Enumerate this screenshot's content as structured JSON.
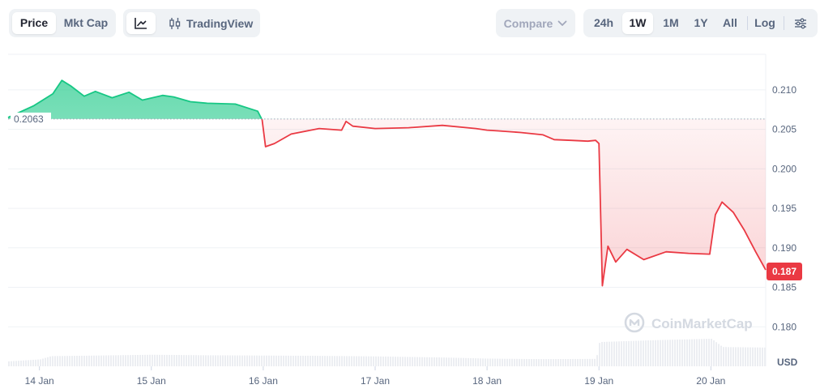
{
  "toolbar": {
    "price_label": "Price",
    "mktcap_label": "Mkt Cap",
    "tradingview_label": "TradingView",
    "compare_label": "Compare",
    "ranges": [
      "24h",
      "1W",
      "1M",
      "1Y",
      "All"
    ],
    "active_range": "1W",
    "log_label": "Log",
    "icons": {
      "line_chart": "line-chart-icon",
      "candles": "candlestick-icon",
      "compare_dropdown": "chevron-down-icon",
      "settings": "sliders-icon"
    }
  },
  "watermark": {
    "text": "CoinMarketCap",
    "icon": "coinmarketcap-logo-icon"
  },
  "colors": {
    "up": "#16c784",
    "down": "#ea3943",
    "baseline": "#a1a7bb",
    "grid": "#eff2f5",
    "axis_text": "#58667e",
    "volume": "#eceef2"
  },
  "chart_data": {
    "type": "area",
    "currency": "USD",
    "baseline": 0.2063,
    "baseline_label": "0.2063",
    "current_price": 0.187,
    "current_price_label": "0.187",
    "ylim": [
      0.175,
      0.2145
    ],
    "y_ticks": [
      0.21,
      0.205,
      0.2,
      0.195,
      0.19,
      0.185,
      0.18
    ],
    "y_tick_labels": [
      "0.210",
      "0.205",
      "0.200",
      "0.195",
      "0.190",
      "0.185",
      "0.180"
    ],
    "x_ticks": [
      1,
      2,
      3,
      4,
      5,
      6,
      7
    ],
    "x_tick_labels": [
      "14 Jan",
      "15 Jan",
      "16 Jan",
      "17 Jan",
      "18 Jan",
      "19 Jan",
      "20 Jan"
    ],
    "xlim": [
      0.72,
      7.49
    ],
    "grid": true,
    "series": [
      {
        "x": [
          0.72,
          0.95,
          1.12,
          1.2,
          1.28,
          1.4,
          1.5,
          1.65,
          1.8,
          1.92,
          2.1,
          2.2,
          2.35,
          2.5,
          2.75,
          2.95,
          2.99,
          3.02,
          3.1,
          3.25,
          3.5,
          3.7,
          3.74,
          3.8,
          4.0,
          4.3,
          4.6,
          4.9,
          5.0,
          5.1,
          5.3,
          5.5,
          5.6,
          5.75,
          5.9,
          5.97,
          6.0,
          6.03,
          6.08,
          6.15,
          6.25,
          6.4,
          6.6,
          6.8,
          6.99,
          7.04,
          7.1,
          7.2,
          7.3,
          7.4,
          7.49
        ],
        "values": [
          0.2065,
          0.208,
          0.2095,
          0.2112,
          0.2105,
          0.2092,
          0.2098,
          0.209,
          0.2097,
          0.2087,
          0.2093,
          0.2091,
          0.2085,
          0.2083,
          0.2082,
          0.2073,
          0.2062,
          0.2028,
          0.2032,
          0.2044,
          0.2051,
          0.2049,
          0.206,
          0.2054,
          0.2051,
          0.2052,
          0.2055,
          0.2051,
          0.2049,
          0.2048,
          0.2046,
          0.2043,
          0.2037,
          0.2036,
          0.2035,
          0.2036,
          0.2032,
          0.1852,
          0.1902,
          0.1882,
          0.1898,
          0.1885,
          0.1895,
          0.1893,
          0.1892,
          0.1942,
          0.1958,
          0.1945,
          0.1922,
          0.1895,
          0.1872
        ]
      }
    ],
    "volume": [
      {
        "x": 0.72,
        "level": 0.18
      },
      {
        "x": 1.0,
        "level": 0.25
      },
      {
        "x": 1.1,
        "level": 0.37
      },
      {
        "x": 1.5,
        "level": 0.39
      },
      {
        "x": 2.0,
        "level": 0.42
      },
      {
        "x": 2.5,
        "level": 0.4
      },
      {
        "x": 3.0,
        "level": 0.39
      },
      {
        "x": 3.5,
        "level": 0.38
      },
      {
        "x": 4.0,
        "level": 0.36
      },
      {
        "x": 4.6,
        "level": 0.32
      },
      {
        "x": 5.0,
        "level": 0.28
      },
      {
        "x": 5.5,
        "level": 0.26
      },
      {
        "x": 5.97,
        "level": 0.27
      },
      {
        "x": 6.0,
        "level": 0.88
      },
      {
        "x": 6.5,
        "level": 0.95
      },
      {
        "x": 7.0,
        "level": 1.0
      },
      {
        "x": 7.1,
        "level": 0.7
      },
      {
        "x": 7.49,
        "level": 0.68
      }
    ]
  }
}
